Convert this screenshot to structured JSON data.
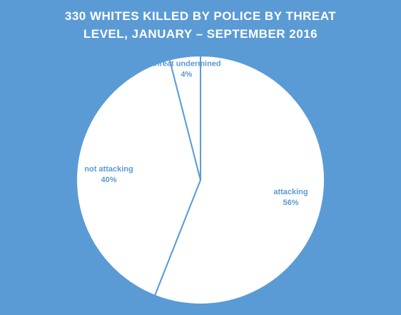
{
  "chart_data": {
    "type": "pie",
    "title": "330 WHITES KILLED BY POLICE BY THREAT LEVEL, JANUARY – SEPTEMBER 2016",
    "categories": [
      "attacking",
      "not attacking",
      "threat undermined"
    ],
    "values": [
      56,
      40,
      4
    ],
    "value_labels": [
      "56%",
      "40%",
      "4%"
    ],
    "color": "#ffffff",
    "label_color": "#5b9bd5",
    "background": "#5b9bd5"
  }
}
